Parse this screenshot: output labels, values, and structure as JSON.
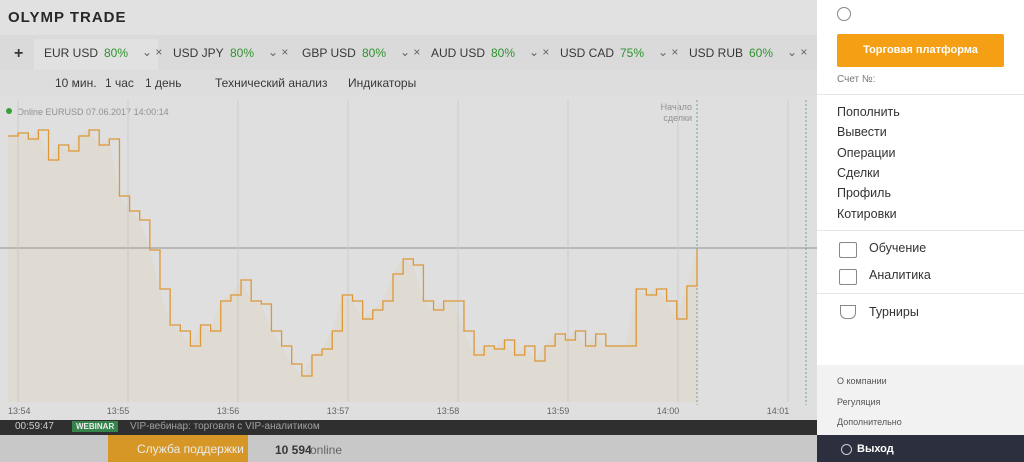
{
  "header": {
    "logo": "OLYMP TRADE"
  },
  "tabs": {
    "add": "+",
    "items": [
      {
        "name": "EUR USD",
        "payout": "80%"
      },
      {
        "name": "USD JPY",
        "payout": "80%"
      },
      {
        "name": "GBP USD",
        "payout": "80%"
      },
      {
        "name": "AUD USD",
        "payout": "80%"
      },
      {
        "name": "USD CAD",
        "payout": "75%"
      },
      {
        "name": "USD RUB",
        "payout": "60%"
      }
    ]
  },
  "toolbar": {
    "periods": [
      "10 мин.",
      "1 час",
      "1 день"
    ],
    "analysis": "Технический анализ",
    "indicators": "Индикаторы"
  },
  "chart": {
    "type": "line",
    "legend": "Online EURUSD 07.06.2017 14:00:14",
    "marker": [
      "Начало",
      "сделки"
    ],
    "xticks": [
      "13:54",
      "13:55",
      "13:56",
      "13:57",
      "13:58",
      "13:59",
      "14:00",
      "14:01"
    ],
    "color": "#f0a030",
    "ylim": [
      0,
      100
    ],
    "values": [
      88,
      89,
      87,
      90,
      80,
      85,
      83,
      88,
      90,
      85,
      87,
      68,
      63,
      60,
      50,
      37,
      25,
      23,
      18,
      25,
      23,
      33,
      35,
      40,
      33,
      32,
      23,
      18,
      12,
      8,
      15,
      17,
      23,
      35,
      33,
      27,
      30,
      33,
      42,
      47,
      45,
      33,
      30,
      33,
      33,
      23,
      15,
      18,
      17,
      20,
      15,
      18,
      13,
      18,
      22,
      20,
      23,
      18,
      22,
      18,
      18,
      18,
      37,
      35,
      37,
      33,
      27,
      38,
      50
    ]
  },
  "bottom_bar": {
    "timer": "00:59:47",
    "badge": "WEBINAR",
    "text": "VIP-вебинар: торговля с VIP-аналитиком"
  },
  "footer": {
    "support": "Служба поддержки",
    "online_count": "10 594",
    "online_label": "online"
  },
  "side_panel": {
    "button": "Торговая платформа",
    "account": "Счет №:",
    "menu": [
      "Пополнить",
      "Вывести",
      "Операции",
      "Сделки",
      "Профиль",
      "Котировки"
    ],
    "learn": [
      "Обучение",
      "Аналитика"
    ],
    "tournaments": "Турниры",
    "links": [
      "О компании",
      "Регуляция",
      "Дополнительно"
    ],
    "logout": "Выход"
  }
}
